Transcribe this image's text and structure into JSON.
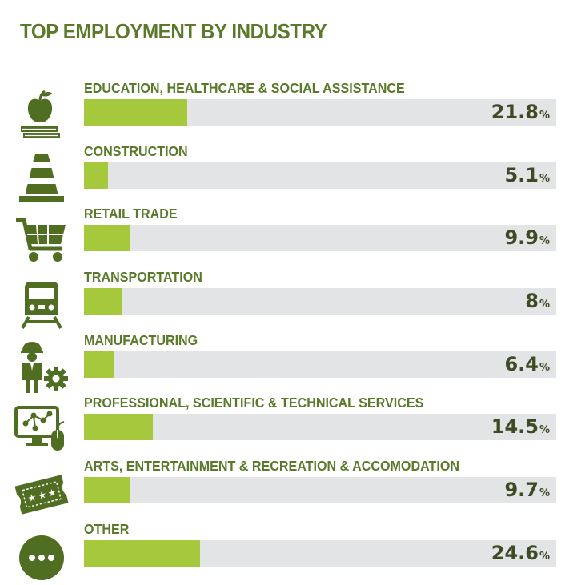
{
  "chart_data": {
    "type": "bar",
    "title": "TOP EMPLOYMENT BY INDUSTRY",
    "orientation": "horizontal",
    "max": 100,
    "unit": "%",
    "categories": [
      "EDUCATION, HEALTHCARE & SOCIAL ASSISTANCE",
      "CONSTRUCTION",
      "RETAIL TRADE",
      "TRANSPORTATION",
      "MANUFACTURING",
      "PROFESSIONAL, SCIENTIFIC & TECHNICAL SERVICES",
      "ARTS, ENTERTAINMENT & RECREATION & ACCOMODATION",
      "OTHER"
    ],
    "values": [
      21.8,
      5.1,
      9.9,
      8,
      6.4,
      14.5,
      9.7,
      24.6
    ],
    "value_labels": [
      "21.8",
      "5.1",
      "9.9",
      "8",
      "6.4",
      "14.5",
      "9.7",
      "24.6"
    ],
    "icons": [
      "apple-books-icon",
      "traffic-cone-icon",
      "shopping-cart-icon",
      "train-icon",
      "worker-gear-icon",
      "computer-network-icon",
      "ticket-stars-icon",
      "more-dots-icon"
    ],
    "colors": {
      "title": "#5a7a2a",
      "fill": "#a6c83c",
      "track": "#e3e4e6",
      "value": "#3e4a24",
      "icon": "#4f6e22"
    }
  }
}
